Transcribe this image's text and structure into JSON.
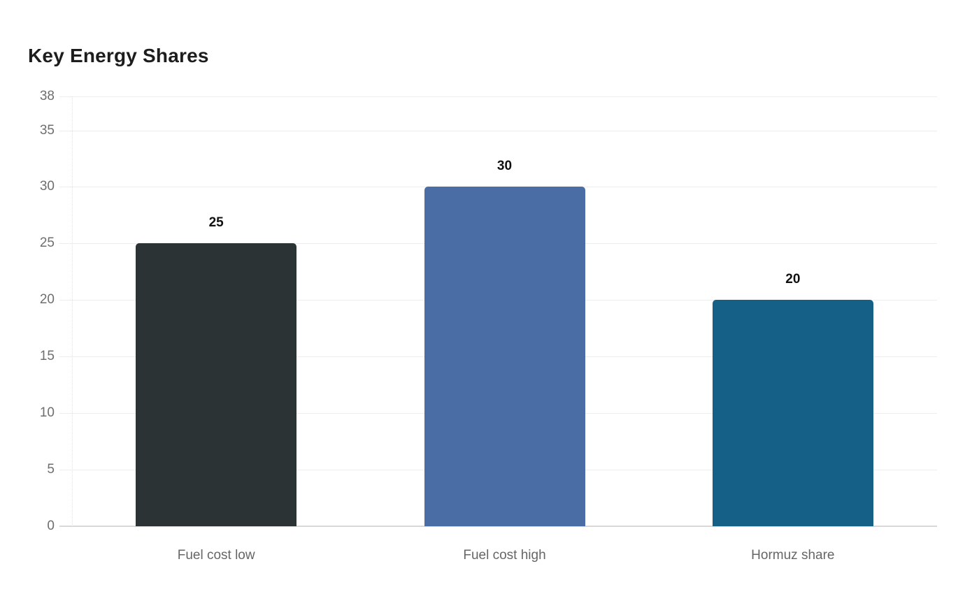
{
  "chart_data": {
    "type": "bar",
    "title": "Key Energy Shares",
    "categories": [
      "Fuel cost low",
      "Fuel cost high",
      "Hormuz share"
    ],
    "values": [
      25,
      30,
      20
    ],
    "data_labels": [
      "25",
      "30",
      "20"
    ],
    "bar_colors": [
      "#2c3335",
      "#4a6da6",
      "#156087"
    ],
    "xlabel": "",
    "ylabel": "",
    "ylim": [
      0,
      38
    ],
    "yticks": [
      0,
      5,
      10,
      15,
      20,
      25,
      30,
      35,
      38
    ],
    "grid": "horizontal",
    "legend": "none",
    "style": {
      "background": "#ffffff",
      "title_color": "#1d1d1d",
      "tick_label_color": "#6e6e6e",
      "category_label_color": "#666666",
      "value_label_color": "#111111",
      "gridline_color": "#ededed",
      "baseline_color": "#d8d8d8",
      "axis_dotted_color": "#e4e4e4"
    }
  }
}
